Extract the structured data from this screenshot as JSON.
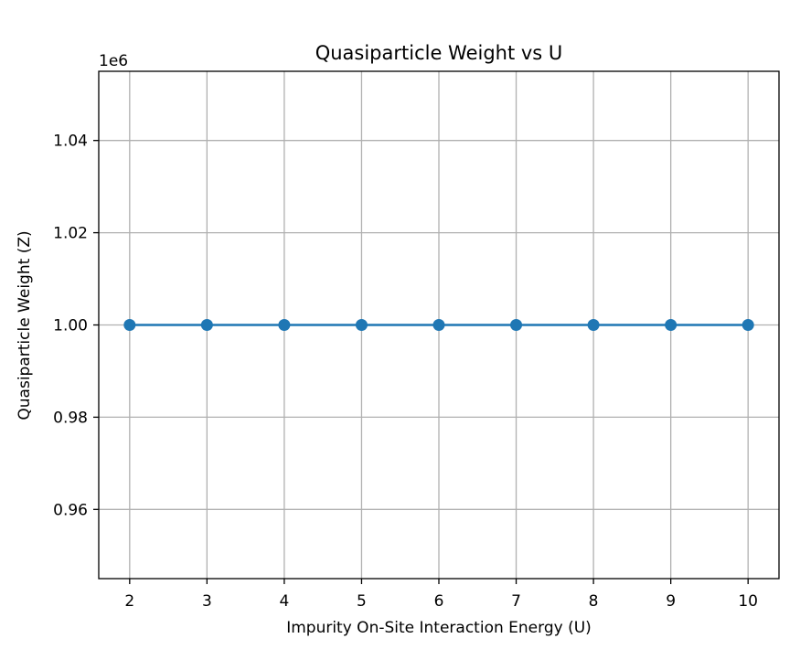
{
  "chart_data": {
    "type": "line",
    "title": "Quasiparticle Weight vs U",
    "xlabel": "Impurity On-Site Interaction Energy (U)",
    "ylabel": "Quasiparticle Weight (Z)",
    "y_offset_label": "1e6",
    "x": [
      2,
      3,
      4,
      5,
      6,
      7,
      8,
      9,
      10
    ],
    "series": [
      {
        "values": [
          1000000,
          1000000,
          1000000,
          1000000,
          1000000,
          1000000,
          1000000,
          1000000,
          1000000
        ],
        "color": "#1f77b4",
        "marker": "circle"
      }
    ],
    "xlim": [
      1.6,
      10.4
    ],
    "ylim": [
      945000,
      1055000
    ],
    "x_ticks": [
      2,
      3,
      4,
      5,
      6,
      7,
      8,
      9,
      10
    ],
    "x_tick_labels": [
      "2",
      "3",
      "4",
      "5",
      "6",
      "7",
      "8",
      "9",
      "10"
    ],
    "y_ticks": [
      960000,
      980000,
      1000000,
      1020000,
      1040000
    ],
    "y_tick_labels": [
      "0.96",
      "0.98",
      "1.00",
      "1.02",
      "1.04"
    ],
    "grid": true,
    "grid_color": "#b0b0b0",
    "axis_color": "#000000"
  }
}
